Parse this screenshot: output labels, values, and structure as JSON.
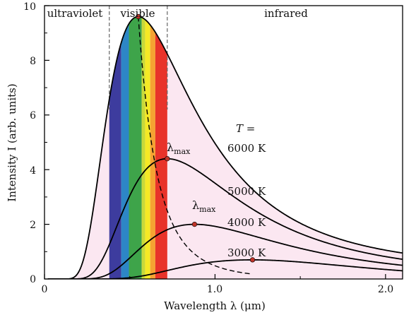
{
  "chart_data": {
    "type": "line",
    "xlabel": "Wavelength λ (μm)",
    "ylabel": "Intensity  I  (arb. units)",
    "xlim": [
      0,
      2.1
    ],
    "ylim": [
      0,
      10
    ],
    "x_ticks": [
      "0",
      "1.0",
      "2.0"
    ],
    "x_tick_values": [
      0,
      1.0,
      2.0
    ],
    "y_ticks": [
      "0",
      "2",
      "4",
      "6",
      "8",
      "10"
    ],
    "y_tick_values": [
      0,
      2,
      4,
      6,
      8,
      10
    ],
    "regions": [
      {
        "label": "ultraviolet",
        "from": 0,
        "to": 0.38
      },
      {
        "label": "visible",
        "from": 0.38,
        "to": 0.72
      },
      {
        "label": "infrared",
        "from": 0.72,
        "to": 2.1
      }
    ],
    "temperature_label": "T =",
    "series": [
      {
        "name": "6000 K",
        "temperature_K": 6000,
        "peak": {
          "x": 0.55,
          "y": 9.6
        },
        "value_at_x_max": 0.95
      },
      {
        "name": "5000 K",
        "temperature_K": 5000,
        "peak": {
          "x": 0.72,
          "y": 4.4
        },
        "value_at_x_max": 0.72
      },
      {
        "name": "4000 K",
        "temperature_K": 4000,
        "peak": {
          "x": 0.88,
          "y": 2.0
        },
        "value_at_x_max": 0.5
      },
      {
        "name": "3000 K",
        "temperature_K": 3000,
        "peak": {
          "x": 1.22,
          "y": 0.7
        },
        "value_at_x_max": 0.3
      }
    ],
    "wien_peaks": {
      "x": [
        0.55,
        0.72,
        0.88,
        1.22
      ],
      "y": [
        9.6,
        4.4,
        2.0,
        0.7
      ]
    },
    "annotations": [
      {
        "text": "λ",
        "sub": "max",
        "near_series": "5000 K"
      },
      {
        "text": "λ",
        "sub": "max",
        "near_series": "4000 K"
      }
    ],
    "visible_bands": [
      {
        "from": 0.38,
        "to": 0.45,
        "color": "#3d3c9e"
      },
      {
        "from": 0.45,
        "to": 0.495,
        "color": "#2d86c6"
      },
      {
        "from": 0.495,
        "to": 0.57,
        "color": "#3ea44a"
      },
      {
        "from": 0.57,
        "to": 0.59,
        "color": "#c8d93a"
      },
      {
        "from": 0.59,
        "to": 0.62,
        "color": "#f5e925"
      },
      {
        "from": 0.62,
        "to": 0.65,
        "color": "#f5a332"
      },
      {
        "from": 0.65,
        "to": 0.72,
        "color": "#e8332a"
      }
    ],
    "fill_color": "#fbe7f1",
    "curve_color": "#000000",
    "peak_marker_color": "#c0342a",
    "grid": false,
    "legend": "inline labels"
  }
}
